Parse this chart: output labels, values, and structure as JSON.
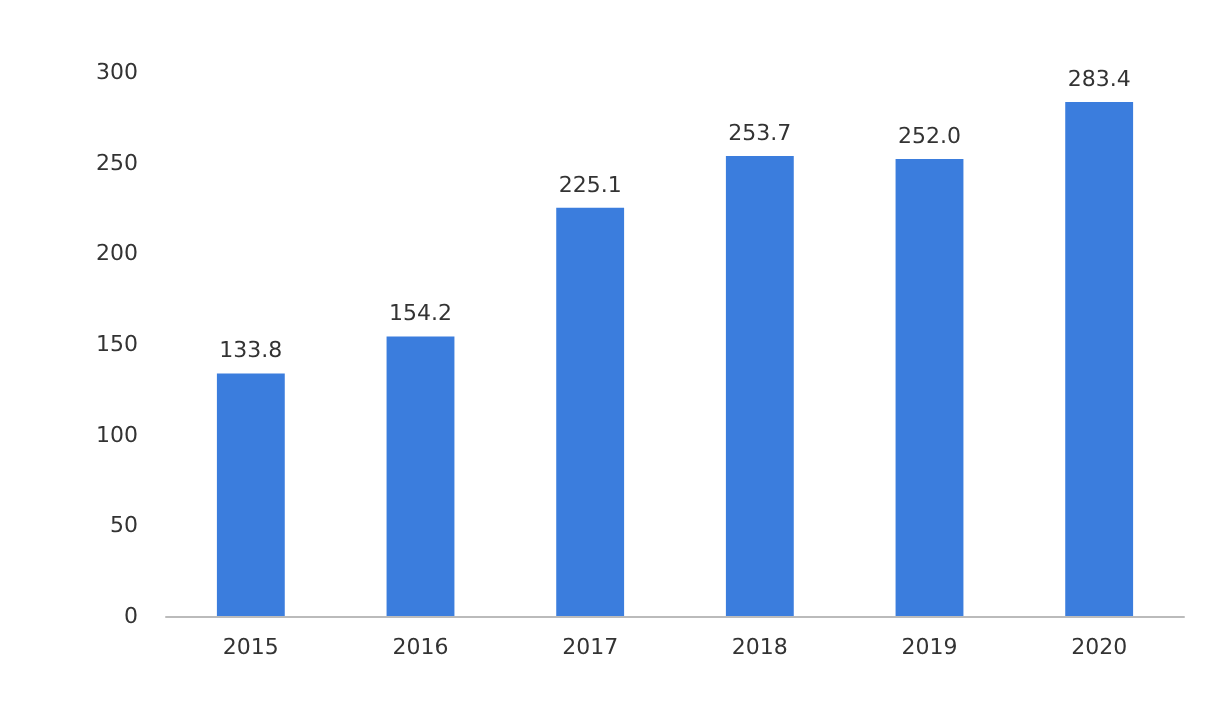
{
  "chart_data": {
    "type": "bar",
    "categories": [
      "2015",
      "2016",
      "2017",
      "2018",
      "2019",
      "2020"
    ],
    "values": [
      133.8,
      154.2,
      225.1,
      253.7,
      252.0,
      283.4
    ],
    "value_labels": [
      "133.8",
      "154.2",
      "225.1",
      "253.7",
      "252.0",
      "283.4"
    ],
    "color": "#3b7ddd",
    "ylim": [
      0,
      300
    ],
    "yticks": [
      0,
      50,
      100,
      150,
      200,
      250,
      300
    ],
    "grid": false
  }
}
